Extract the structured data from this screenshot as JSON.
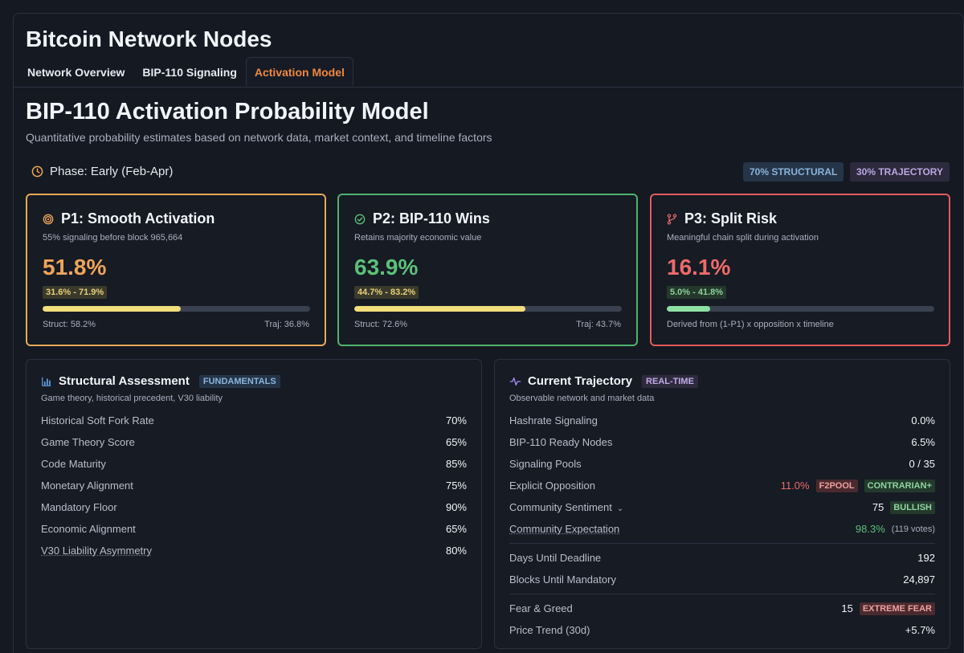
{
  "app": {
    "title": "Bitcoin Network Nodes"
  },
  "tabs": [
    {
      "label": "Network Overview"
    },
    {
      "label": "BIP-110 Signaling"
    },
    {
      "label": "Activation Model"
    }
  ],
  "page": {
    "title": "BIP-110 Activation Probability Model",
    "subtitle": "Quantitative probability estimates based on network data, market context, and timeline factors"
  },
  "phase": {
    "label": "Phase: Early (Feb-Apr)"
  },
  "weights": {
    "structural": "70% STRUCTURAL",
    "trajectory": "30% TRAJECTORY"
  },
  "colors": {
    "accent": "#f0883e",
    "p1": "#e8a857",
    "p2": "#4fb36d",
    "p3": "#e65a5a"
  },
  "cards": {
    "p1": {
      "title": "P1: Smooth Activation",
      "desc": "55% signaling before block 965,664",
      "value": "51.8%",
      "range": "31.6% - 71.9%",
      "progress": 0.518,
      "struct": "Struct: 58.2%",
      "traj": "Traj: 36.8%",
      "icon": "target-icon"
    },
    "p2": {
      "title": "P2: BIP-110 Wins",
      "desc": "Retains majority economic value",
      "value": "63.9%",
      "range": "44.7% - 83.2%",
      "progress": 0.639,
      "struct": "Struct: 72.6%",
      "traj": "Traj: 43.7%",
      "icon": "check-circle-icon"
    },
    "p3": {
      "title": "P3: Split Risk",
      "desc": "Meaningful chain split during activation",
      "value": "16.1%",
      "range": "5.0% - 41.8%",
      "progress": 0.161,
      "note": "Derived from (1-P1) x opposition x timeline",
      "icon": "git-fork-icon"
    }
  },
  "structural": {
    "title": "Structural Assessment",
    "badge": "FUNDAMENTALS",
    "subtitle": "Game theory, historical precedent, V30 liability",
    "rows": [
      {
        "label": "Historical Soft Fork Rate",
        "value": "70%"
      },
      {
        "label": "Game Theory Score",
        "value": "65%"
      },
      {
        "label": "Code Maturity",
        "value": "85%"
      },
      {
        "label": "Monetary Alignment",
        "value": "75%"
      },
      {
        "label": "Mandatory Floor",
        "value": "90%"
      },
      {
        "label": "Economic Alignment",
        "value": "65%"
      },
      {
        "label": "V30 Liability Asymmetry",
        "value": "80%"
      }
    ]
  },
  "trajectory": {
    "title": "Current Trajectory",
    "badge": "REAL-TIME",
    "subtitle": "Observable network and market data",
    "hashrate": {
      "label": "Hashrate Signaling",
      "value": "0.0%"
    },
    "ready_nodes": {
      "label": "BIP-110 Ready Nodes",
      "value": "6.5%"
    },
    "pools": {
      "label": "Signaling Pools",
      "value": "0 / 35"
    },
    "opposition": {
      "label": "Explicit Opposition",
      "value": "11.0%",
      "tag1": "F2POOL",
      "tag2": "CONTRARIAN+"
    },
    "sentiment": {
      "label": "Community Sentiment",
      "chevron": "⌄",
      "value": "75",
      "tag": "BULLISH"
    },
    "expectation": {
      "label": "Community Expectation",
      "value": "98.3%",
      "votes": "(119 votes)"
    },
    "deadline": {
      "label": "Days Until Deadline",
      "value": "192"
    },
    "blocks": {
      "label": "Blocks Until Mandatory",
      "value": "24,897"
    },
    "fear": {
      "label": "Fear & Greed",
      "value": "15",
      "tag": "EXTREME FEAR"
    },
    "price": {
      "label": "Price Trend (30d)",
      "value": "+5.7%"
    }
  }
}
